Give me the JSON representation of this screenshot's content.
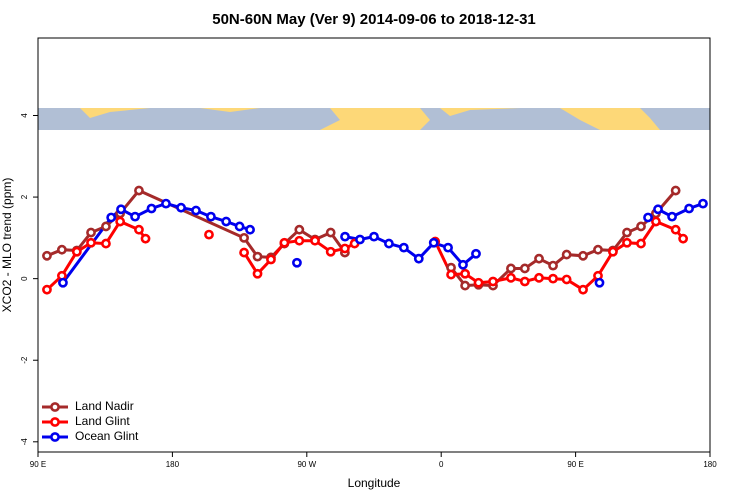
{
  "chart_data": {
    "type": "line",
    "title": "50N-60N May (Ver 9)   2014-09-06 to 2018-12-31",
    "x_label": "Longitude",
    "y_label": "XCO2 - MLO trend (ppm)",
    "xlim": [
      90,
      540
    ],
    "xticks": [
      {
        "value": 90,
        "label": "90 E"
      },
      180,
      {
        "value": 270,
        "label": "90 W"
      },
      {
        "value": 360,
        "label": "0"
      },
      {
        "value": 450,
        "label": "90 E"
      },
      {
        "value": 540,
        "label": "180"
      }
    ],
    "ylim": [
      -4.25,
      5.9
    ],
    "yticks": [
      -4,
      -2,
      0,
      2,
      4
    ],
    "legend": "bottom-left",
    "series": [
      {
        "name": "Land Nadir",
        "color": "#a52a2a",
        "x": [
          96,
          106,
          116,
          125.5,
          135.5,
          145,
          157.6,
          228,
          237,
          246,
          255,
          265,
          275.5,
          286,
          295.5,
          356,
          366.6,
          376,
          385,
          394.7,
          406.7,
          416,
          425.5,
          434.9,
          444,
          455,
          465,
          475,
          484.4,
          493.8,
          503.8,
          517
        ],
        "values": [
          0.56,
          0.71,
          0.69,
          1.13,
          1.28,
          1.6,
          2.16,
          1.0,
          0.54,
          0.52,
          0.86,
          1.2,
          0.96,
          1.13,
          0.64,
          null,
          0.27,
          -0.17,
          -0.15,
          -0.17,
          0.25,
          0.25,
          0.49,
          0.32,
          0.59,
          0.56,
          0.71,
          0.69,
          1.13,
          1.28,
          1.6,
          2.16
        ]
      },
      {
        "name": "Land Glint",
        "color": "#ff0000",
        "x": [
          96,
          106,
          116,
          125.5,
          135.5,
          145,
          157.6,
          162,
          183,
          204.5,
          216,
          228,
          237,
          246,
          255,
          265,
          275.5,
          286,
          295.5,
          302,
          330,
          356,
          366.6,
          376,
          385,
          394.7,
          406.7,
          416,
          425.5,
          434.9,
          444,
          455,
          465,
          475,
          484.4,
          493.8,
          503.8,
          517,
          522
        ],
        "values": [
          -0.27,
          0.07,
          0.66,
          0.88,
          0.86,
          1.4,
          1.2,
          0.98,
          null,
          1.08,
          null,
          0.64,
          0.12,
          0.47,
          0.88,
          0.93,
          0.93,
          0.66,
          0.74,
          0.86,
          null,
          0.91,
          0.1,
          0.12,
          -0.1,
          -0.07,
          0.02,
          -0.07,
          0.02,
          0,
          -0.02,
          -0.27,
          0.07,
          0.66,
          0.88,
          0.86,
          1.4,
          1.2,
          0.98
        ]
      },
      {
        "name": "Ocean Glint",
        "color": "#0000ee",
        "x": [
          106.7,
          139,
          145.6,
          155,
          166,
          175.7,
          185.8,
          195.8,
          205.8,
          216,
          225,
          232,
          250,
          263.4,
          280,
          295.6,
          305.6,
          315,
          325,
          335,
          345,
          355,
          364.6,
          374.6,
          383.3,
          420,
          466,
          480,
          498.5,
          505.2,
          514.6,
          526,
          535.3
        ],
        "values": [
          -0.1,
          1.5,
          1.7,
          1.52,
          1.72,
          1.84,
          1.74,
          1.67,
          1.52,
          1.4,
          1.28,
          1.2,
          null,
          0.39,
          null,
          1.03,
          0.96,
          1.03,
          0.86,
          0.76,
          0.49,
          0.88,
          0.76,
          0.34,
          0.61,
          null,
          -0.1,
          null,
          1.5,
          1.7,
          1.52,
          1.72,
          1.84
        ]
      }
    ]
  }
}
